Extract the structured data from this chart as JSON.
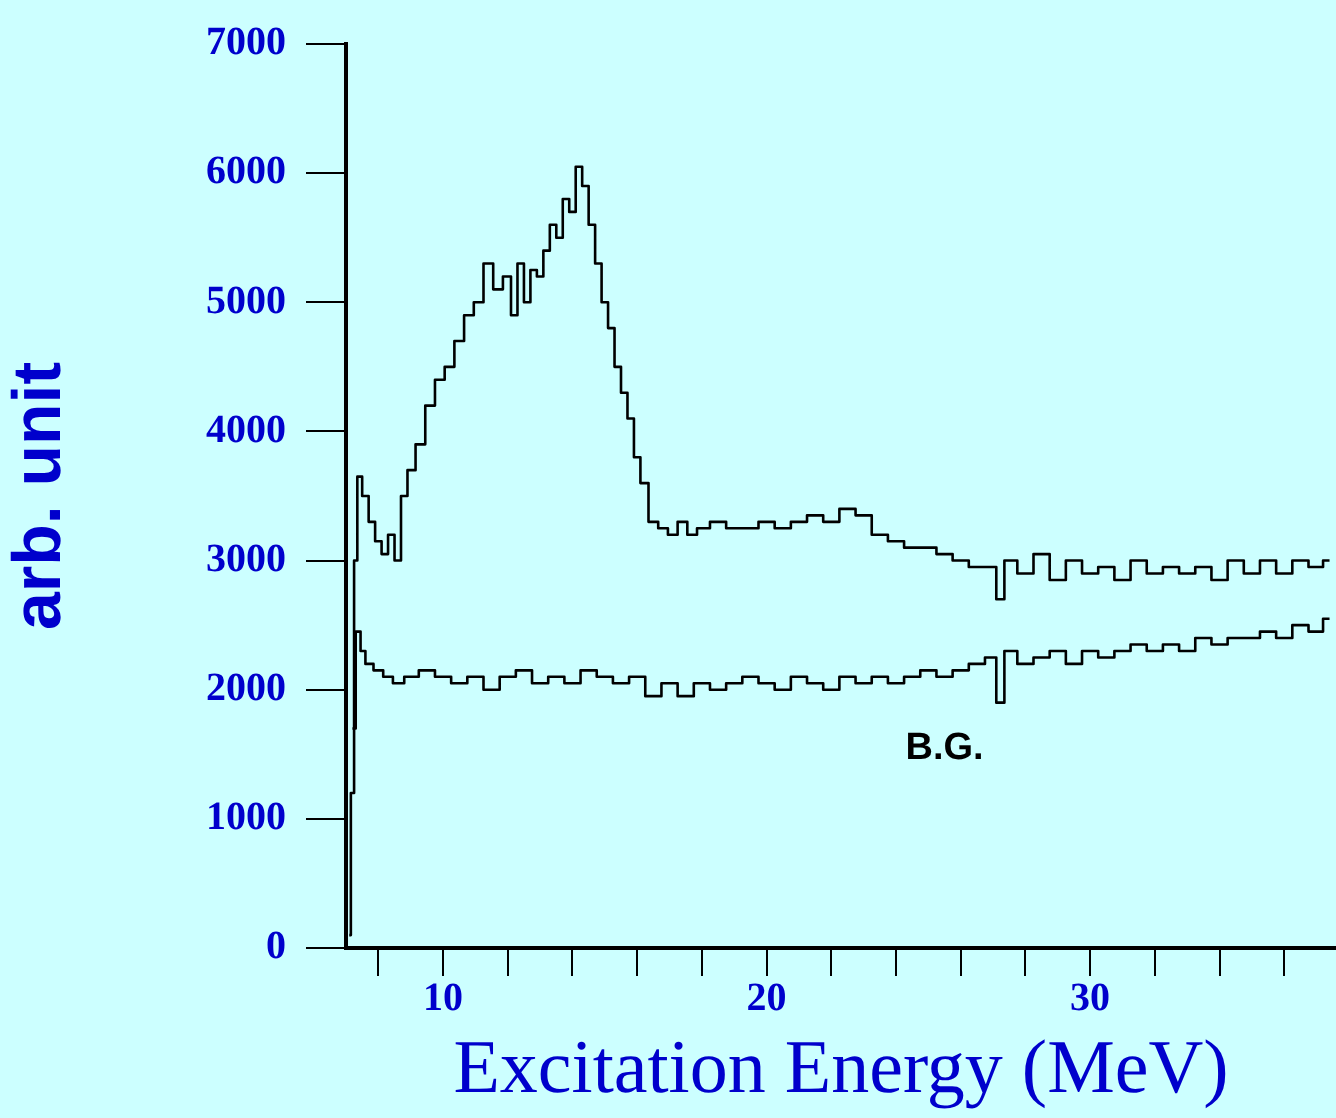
{
  "chart_data": {
    "type": "step",
    "xlabel": "Excitation Energy (MeV)",
    "ylabel": "arb. unit",
    "xlim": [
      7,
      37.6
    ],
    "ylim": [
      0,
      7000
    ],
    "xticks": [
      {
        "value": 8,
        "label": null
      },
      10,
      {
        "value": 12,
        "label": null
      },
      {
        "value": 14,
        "label": null
      },
      {
        "value": 16,
        "label": null
      },
      {
        "value": 18,
        "label": null
      },
      20,
      {
        "value": 22,
        "label": null
      },
      {
        "value": 24,
        "label": null
      },
      {
        "value": 26,
        "label": null
      },
      {
        "value": 28,
        "label": null
      },
      30,
      {
        "value": 32,
        "label": null
      },
      {
        "value": 34,
        "label": null
      },
      {
        "value": 36,
        "label": null
      }
    ],
    "yticks": [
      0,
      1000,
      2000,
      3000,
      4000,
      5000,
      6000,
      7000
    ],
    "grid": false,
    "legend": false,
    "series": [
      {
        "color": "#000000",
        "x": [
          7.1,
          7.2,
          7.3,
          7.4,
          7.6,
          7.8,
          8.0,
          8.2,
          8.4,
          8.6,
          8.8,
          9.0,
          9.3,
          9.6,
          9.9,
          10.2,
          10.5,
          10.8,
          11.1,
          11.4,
          11.7,
          12.0,
          12.2,
          12.4,
          12.6,
          12.8,
          13.0,
          13.2,
          13.4,
          13.6,
          13.8,
          14.0,
          14.2,
          14.4,
          14.6,
          14.8,
          15.0,
          15.2,
          15.4,
          15.6,
          15.8,
          16.0,
          16.2,
          16.5,
          16.8,
          17.1,
          17.4,
          17.7,
          18.0,
          18.5,
          19.0,
          19.5,
          20.0,
          20.5,
          21.0,
          21.5,
          22.0,
          22.5,
          23.0,
          23.5,
          24.0,
          24.5,
          25.0,
          25.5,
          26.0,
          26.5,
          27.0,
          27.2,
          27.5,
          28.0,
          28.5,
          29.0,
          29.5,
          30.0,
          30.5,
          31.0,
          31.5,
          32.0,
          32.5,
          33.0,
          33.5,
          34.0,
          34.5,
          35.0,
          35.5,
          36.0,
          36.5,
          37.0,
          37.4
        ],
        "values": [
          100,
          1200,
          3000,
          3650,
          3500,
          3300,
          3150,
          3050,
          3200,
          3000,
          3500,
          3700,
          3900,
          4200,
          4400,
          4500,
          4700,
          4900,
          5000,
          5300,
          5100,
          5200,
          4900,
          5300,
          5000,
          5250,
          5200,
          5400,
          5600,
          5500,
          5800,
          5700,
          6050,
          5900,
          5600,
          5300,
          5000,
          4800,
          4500,
          4300,
          4100,
          3800,
          3600,
          3300,
          3250,
          3200,
          3300,
          3200,
          3250,
          3300,
          3250,
          3250,
          3300,
          3250,
          3300,
          3350,
          3300,
          3400,
          3350,
          3200,
          3150,
          3100,
          3100,
          3050,
          3000,
          2950,
          2950,
          2700,
          3000,
          2900,
          3050,
          2850,
          3000,
          2900,
          2950,
          2850,
          3000,
          2900,
          2950,
          2900,
          2950,
          2850,
          3000,
          2900,
          3000,
          2900,
          3000,
          2950,
          3000
        ]
      },
      {
        "name": "B.G.",
        "color": "#000000",
        "x": [
          7.2,
          7.4,
          7.5,
          7.7,
          8.0,
          8.3,
          8.6,
          9.0,
          9.5,
          10.0,
          10.5,
          11.0,
          11.5,
          12.0,
          12.5,
          13.0,
          13.5,
          14.0,
          14.5,
          15.0,
          15.5,
          16.0,
          16.5,
          17.0,
          17.5,
          18.0,
          18.5,
          19.0,
          19.5,
          20.0,
          20.5,
          21.0,
          21.5,
          22.0,
          22.5,
          23.0,
          23.5,
          24.0,
          24.5,
          25.0,
          25.5,
          26.0,
          26.5,
          27.0,
          27.2,
          27.5,
          28.0,
          28.5,
          29.0,
          29.5,
          30.0,
          30.5,
          31.0,
          31.5,
          32.0,
          32.5,
          33.0,
          33.5,
          34.0,
          34.5,
          35.0,
          35.5,
          36.0,
          36.5,
          37.0,
          37.4
        ],
        "values": [
          1700,
          2450,
          2300,
          2200,
          2150,
          2100,
          2050,
          2100,
          2150,
          2100,
          2050,
          2100,
          2000,
          2100,
          2150,
          2050,
          2100,
          2050,
          2150,
          2100,
          2050,
          2100,
          1950,
          2050,
          1950,
          2050,
          2000,
          2050,
          2100,
          2050,
          2000,
          2100,
          2050,
          2000,
          2100,
          2050,
          2100,
          2050,
          2100,
          2150,
          2100,
          2150,
          2200,
          2250,
          1900,
          2300,
          2200,
          2250,
          2300,
          2200,
          2300,
          2250,
          2300,
          2350,
          2300,
          2350,
          2300,
          2400,
          2350,
          2400,
          2400,
          2450,
          2400,
          2500,
          2450,
          2550
        ]
      }
    ]
  }
}
